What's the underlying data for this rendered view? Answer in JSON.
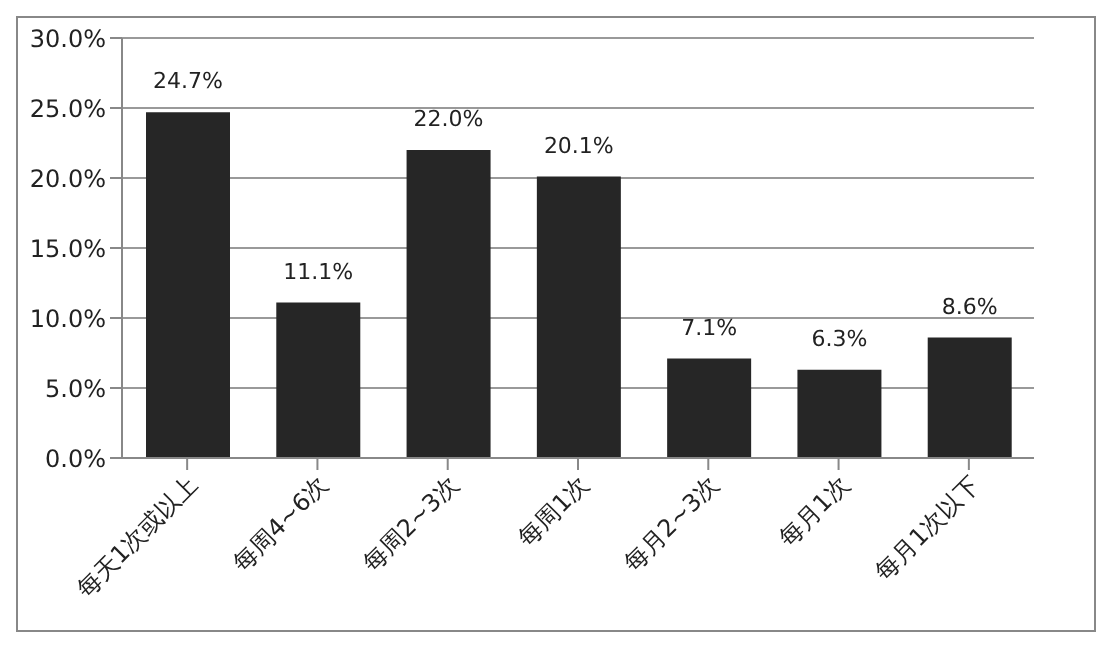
{
  "chart_data": {
    "type": "bar",
    "categories": [
      "每天1次或以上",
      "每周4~6次",
      "每周2~3次",
      "每周1次",
      "每月2~3次",
      "每月1次",
      "每月1次以下"
    ],
    "values": [
      24.7,
      11.1,
      22.0,
      20.1,
      7.1,
      6.3,
      8.6
    ],
    "value_labels": [
      "24.7%",
      "11.1%",
      "22.0%",
      "20.1%",
      "7.1%",
      "6.3%",
      "8.6%"
    ],
    "color": "#262626",
    "ylim": [
      0,
      30
    ],
    "yticks": [
      {
        "value": 0,
        "label": "0.0%"
      },
      {
        "value": 5,
        "label": "5.0%"
      },
      {
        "value": 10,
        "label": "10.0%"
      },
      {
        "value": 15,
        "label": "15.0%"
      },
      {
        "value": 20,
        "label": "20.0%"
      },
      {
        "value": 25,
        "label": "25.0%"
      },
      {
        "value": 30,
        "label": "30.0%"
      }
    ],
    "grid": "y",
    "legend": false
  }
}
